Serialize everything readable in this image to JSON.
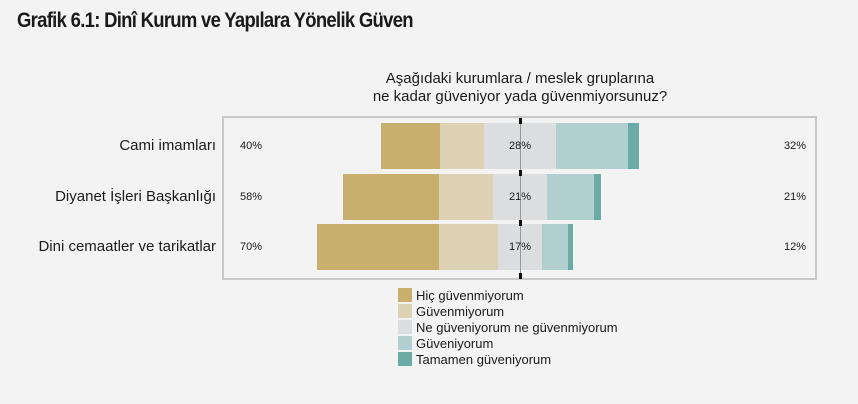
{
  "title": "Grafik 6.1: Dinî Kurum ve Yapılara Yönelik Güven",
  "chart_data": {
    "type": "bar",
    "subtype": "diverging-stacked-horizontal",
    "question_line1": "Aşağıdaki kurumlara / meslek gruplarına",
    "question_line2": "ne kadar güveniyor yada güvenmiyorsunuz?",
    "categories": [
      "Cami imamları",
      "Diyanet İşleri Başkanlığı",
      "Dini cemaatler ve tarikatlar"
    ],
    "series": [
      {
        "name": "Hiç güvenmiyorum",
        "color": "#c9af6e",
        "values": [
          23,
          37,
          47
        ]
      },
      {
        "name": "Güvenmiyorum",
        "color": "#ddd2b3",
        "values": [
          17,
          21,
          23
        ]
      },
      {
        "name": "Ne güveniyorum ne güvenmiyorum",
        "color": "#dcdddf",
        "values": [
          28,
          21,
          17
        ]
      },
      {
        "name": "Güveniyorum",
        "color": "#b0cfce",
        "values": [
          28,
          18,
          10
        ]
      },
      {
        "name": "Tamamen güveniyorum",
        "color": "#6aaba6",
        "values": [
          4,
          3,
          2
        ]
      }
    ],
    "labels_left": [
      "40%",
      "58%",
      "70%"
    ],
    "labels_center": [
      "28%",
      "21%",
      "17%"
    ],
    "labels_right": [
      "32%",
      "21%",
      "12%"
    ],
    "legend_position": "bottom"
  }
}
